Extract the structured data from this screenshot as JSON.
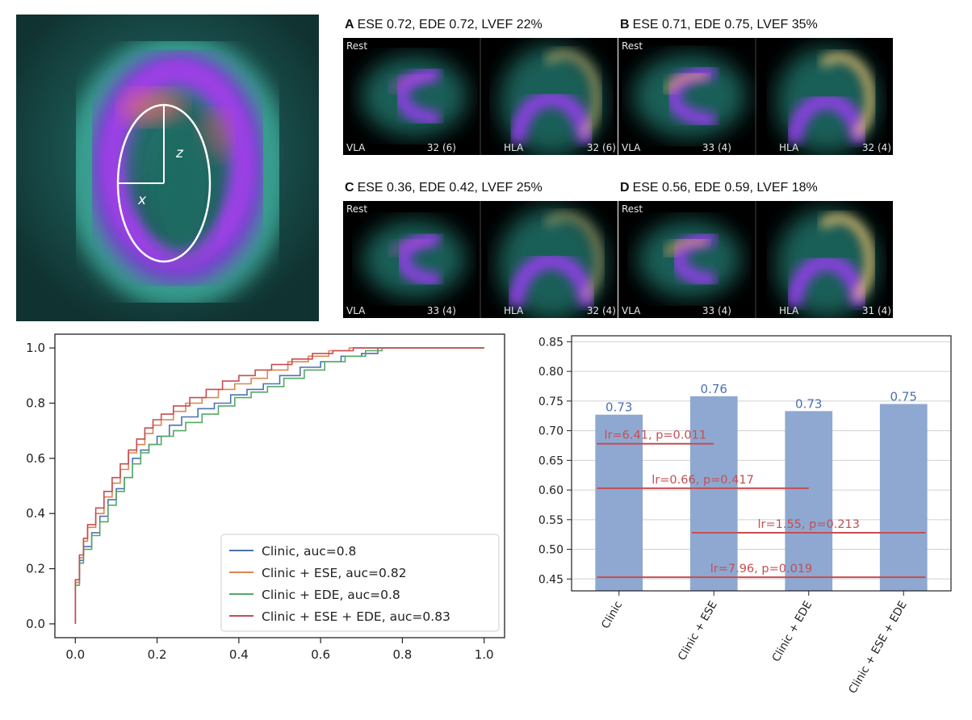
{
  "schematic": {
    "label_z": "z",
    "label_x": "x"
  },
  "scan_panels": [
    {
      "letter": "A",
      "title": "ESE 0.72, EDE 0.72, LVEF 22%",
      "tag": "Rest",
      "left_view": "VLA",
      "left_count": "32 (6)",
      "right_view": "HLA",
      "right_count": "32 (6)"
    },
    {
      "letter": "B",
      "title": "ESE 0.71, EDE 0.75, LVEF 35%",
      "tag": "Rest",
      "left_view": "VLA",
      "left_count": "33 (4)",
      "right_view": "HLA",
      "right_count": "32 (4)"
    },
    {
      "letter": "C",
      "title": "ESE 0.36, EDE 0.42, LVEF 25%",
      "tag": "Rest",
      "left_view": "VLA",
      "left_count": "33 (4)",
      "right_view": "HLA",
      "right_count": "32 (4)"
    },
    {
      "letter": "D",
      "title": "ESE 0.56, EDE 0.59, LVEF 18%",
      "tag": "Rest",
      "left_view": "VLA",
      "left_count": "33 (4)",
      "right_view": "HLA",
      "right_count": "31 (4)"
    }
  ],
  "chart_data": [
    {
      "type": "line",
      "title": "",
      "xlabel": "",
      "ylabel": "",
      "xlim": [
        0.0,
        1.0
      ],
      "ylim": [
        0.0,
        1.0
      ],
      "xticks": [
        "0.0",
        "0.2",
        "0.4",
        "0.6",
        "0.8",
        "1.0"
      ],
      "yticks": [
        "0.0",
        "0.2",
        "0.4",
        "0.6",
        "0.8",
        "1.0"
      ],
      "grid": false,
      "legend_position": "bottom-right",
      "series": [
        {
          "name": "Clinic, auc=0.8",
          "color": "#4c72b0",
          "x": [
            0,
            0,
            0.01,
            0.01,
            0.02,
            0.02,
            0.04,
            0.04,
            0.06,
            0.06,
            0.08,
            0.08,
            0.1,
            0.1,
            0.12,
            0.12,
            0.14,
            0.14,
            0.16,
            0.16,
            0.18,
            0.18,
            0.2,
            0.2,
            0.23,
            0.23,
            0.26,
            0.26,
            0.3,
            0.3,
            0.34,
            0.34,
            0.38,
            0.38,
            0.42,
            0.42,
            0.46,
            0.46,
            0.5,
            0.5,
            0.55,
            0.55,
            0.6,
            0.6,
            0.65,
            0.65,
            0.7,
            0.7,
            0.74,
            0.74,
            1.0
          ],
          "y": [
            0,
            0.15,
            0.15,
            0.23,
            0.23,
            0.28,
            0.28,
            0.33,
            0.33,
            0.39,
            0.39,
            0.45,
            0.45,
            0.49,
            0.49,
            0.53,
            0.53,
            0.6,
            0.6,
            0.63,
            0.63,
            0.65,
            0.65,
            0.68,
            0.68,
            0.72,
            0.72,
            0.75,
            0.75,
            0.78,
            0.78,
            0.8,
            0.8,
            0.83,
            0.83,
            0.85,
            0.85,
            0.87,
            0.87,
            0.9,
            0.9,
            0.93,
            0.93,
            0.95,
            0.95,
            0.97,
            0.97,
            0.98,
            0.98,
            1.0,
            1.0
          ]
        },
        {
          "name": "Clinic + ESE, auc=0.82",
          "color": "#dd8452",
          "x": [
            0,
            0,
            0.01,
            0.01,
            0.02,
            0.02,
            0.03,
            0.03,
            0.05,
            0.05,
            0.07,
            0.07,
            0.09,
            0.09,
            0.11,
            0.11,
            0.13,
            0.13,
            0.15,
            0.15,
            0.17,
            0.17,
            0.19,
            0.19,
            0.21,
            0.21,
            0.24,
            0.24,
            0.27,
            0.27,
            0.31,
            0.31,
            0.35,
            0.35,
            0.39,
            0.39,
            0.43,
            0.43,
            0.47,
            0.47,
            0.52,
            0.52,
            0.57,
            0.57,
            0.62,
            0.62,
            0.67,
            0.67,
            0.72,
            0.72,
            1.0
          ],
          "y": [
            0,
            0.15,
            0.15,
            0.24,
            0.24,
            0.3,
            0.3,
            0.35,
            0.35,
            0.4,
            0.4,
            0.46,
            0.46,
            0.51,
            0.51,
            0.56,
            0.56,
            0.62,
            0.62,
            0.65,
            0.65,
            0.69,
            0.69,
            0.72,
            0.72,
            0.74,
            0.74,
            0.77,
            0.77,
            0.8,
            0.8,
            0.82,
            0.82,
            0.85,
            0.85,
            0.87,
            0.87,
            0.89,
            0.89,
            0.92,
            0.92,
            0.95,
            0.95,
            0.97,
            0.97,
            0.99,
            0.99,
            1.0,
            1.0,
            1.0,
            1.0
          ]
        },
        {
          "name": "Clinic + EDE, auc=0.8",
          "color": "#55a868",
          "x": [
            0,
            0,
            0.01,
            0.01,
            0.02,
            0.02,
            0.04,
            0.04,
            0.06,
            0.06,
            0.08,
            0.08,
            0.1,
            0.1,
            0.12,
            0.12,
            0.14,
            0.14,
            0.16,
            0.16,
            0.18,
            0.18,
            0.21,
            0.21,
            0.24,
            0.24,
            0.27,
            0.27,
            0.31,
            0.31,
            0.35,
            0.35,
            0.39,
            0.39,
            0.43,
            0.43,
            0.47,
            0.47,
            0.51,
            0.51,
            0.56,
            0.56,
            0.61,
            0.61,
            0.66,
            0.66,
            0.71,
            0.71,
            0.75,
            0.75,
            1.0
          ],
          "y": [
            0,
            0.14,
            0.14,
            0.22,
            0.22,
            0.27,
            0.27,
            0.32,
            0.32,
            0.37,
            0.37,
            0.43,
            0.43,
            0.48,
            0.48,
            0.53,
            0.53,
            0.58,
            0.58,
            0.62,
            0.62,
            0.65,
            0.65,
            0.68,
            0.68,
            0.7,
            0.7,
            0.73,
            0.73,
            0.76,
            0.76,
            0.79,
            0.79,
            0.82,
            0.82,
            0.84,
            0.84,
            0.86,
            0.86,
            0.89,
            0.89,
            0.92,
            0.92,
            0.95,
            0.95,
            0.97,
            0.97,
            0.99,
            0.99,
            1.0,
            1.0
          ]
        },
        {
          "name": "Clinic + ESE + EDE, auc=0.83",
          "color": "#c44e52",
          "x": [
            0,
            0,
            0.01,
            0.01,
            0.02,
            0.02,
            0.03,
            0.03,
            0.05,
            0.05,
            0.07,
            0.07,
            0.09,
            0.09,
            0.11,
            0.11,
            0.13,
            0.13,
            0.15,
            0.15,
            0.17,
            0.17,
            0.19,
            0.19,
            0.21,
            0.21,
            0.24,
            0.24,
            0.28,
            0.28,
            0.32,
            0.32,
            0.36,
            0.36,
            0.4,
            0.4,
            0.44,
            0.44,
            0.48,
            0.48,
            0.53,
            0.53,
            0.58,
            0.58,
            0.63,
            0.63,
            0.68,
            0.68,
            0.72,
            0.72,
            1.0
          ],
          "y": [
            0,
            0.16,
            0.16,
            0.25,
            0.25,
            0.31,
            0.31,
            0.36,
            0.36,
            0.42,
            0.42,
            0.48,
            0.48,
            0.53,
            0.53,
            0.58,
            0.58,
            0.63,
            0.63,
            0.67,
            0.67,
            0.71,
            0.71,
            0.74,
            0.74,
            0.76,
            0.76,
            0.79,
            0.79,
            0.82,
            0.82,
            0.85,
            0.85,
            0.88,
            0.88,
            0.9,
            0.9,
            0.92,
            0.92,
            0.94,
            0.94,
            0.96,
            0.96,
            0.98,
            0.98,
            0.99,
            0.99,
            1.0,
            1.0,
            1.0,
            1.0
          ]
        }
      ]
    },
    {
      "type": "bar",
      "title": "",
      "xlabel": "",
      "ylabel": "",
      "ylim": [
        0.43,
        0.86
      ],
      "yticks": [
        "0.45",
        "0.50",
        "0.55",
        "0.60",
        "0.65",
        "0.70",
        "0.75",
        "0.80",
        "0.85"
      ],
      "grid": true,
      "bar_color": "#8fa8d1",
      "value_label_color": "#4c72b0",
      "categories": [
        "Clinic",
        "Clinic + ESE",
        "Clinic + EDE",
        "Clinic + ESE + EDE"
      ],
      "values": [
        0.727,
        0.758,
        0.733,
        0.745
      ],
      "value_labels": [
        "0.73",
        "0.76",
        "0.73",
        "0.75"
      ],
      "comparisons": [
        {
          "label": "lr=6.41, p=0.011",
          "from": 0,
          "to": 1,
          "y": 0.678
        },
        {
          "label": "lr=0.66, p=0.417",
          "from": 0,
          "to": 2,
          "y": 0.603
        },
        {
          "label": "lr=1.55, p=0.213",
          "from": 1,
          "to": 3,
          "y": 0.528
        },
        {
          "label": "lr=7.96, p=0.019",
          "from": 0,
          "to": 3,
          "y": 0.453
        }
      ],
      "comparison_color": "#c44e52"
    }
  ]
}
